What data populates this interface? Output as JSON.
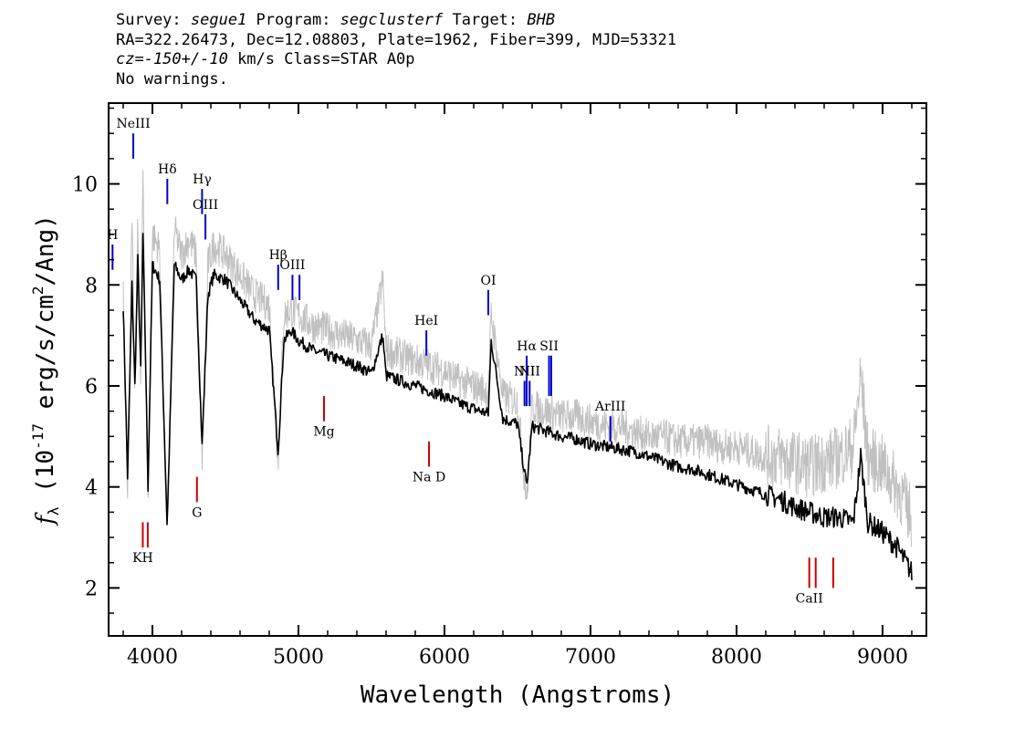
{
  "header": {
    "survey_label": "Survey: ",
    "survey_value": "segue1",
    "program_label": " Program: ",
    "program_value": "segclusterf",
    "target_label": " Target: ",
    "target_value": "BHB",
    "coords_line": "RA=322.26473, Dec=12.08803, Plate=1962, Fiber=399, MJD=53321",
    "cz_value": "cz=-150+/-10",
    "cz_rest": " km/s Class=STAR A0p",
    "warnings": "No warnings."
  },
  "chart_data": {
    "type": "line",
    "xlabel": "Wavelength (Angstroms)",
    "ylabel_main": "f",
    "ylabel_sub": "λ",
    "ylabel_unit_pre": " (10",
    "ylabel_exp1": "-17",
    "ylabel_unit_mid": " erg/s/cm",
    "ylabel_exp2": "2",
    "ylabel_unit_post": "/Ang)",
    "xlim": [
      3700,
      9300
    ],
    "ylim": [
      1.05,
      11.6
    ],
    "xticks": [
      4000,
      5000,
      6000,
      7000,
      8000,
      9000
    ],
    "yticks": [
      2,
      4,
      6,
      8,
      10
    ],
    "grid": false,
    "legend": "none",
    "series": [
      {
        "role": "flux-smoothed",
        "color": "#000000",
        "x": [
          3800,
          3830,
          3860,
          3880,
          3900,
          3920,
          3935,
          3950,
          3970,
          4000,
          4050,
          4101,
          4150,
          4200,
          4250,
          4300,
          4340,
          4380,
          4420,
          4500,
          4600,
          4700,
          4800,
          4861,
          4900,
          4950,
          5000,
          5100,
          5200,
          5300,
          5400,
          5500,
          5577,
          5600,
          5700,
          5800,
          5900,
          6000,
          6100,
          6200,
          6300,
          6320,
          6400,
          6500,
          6563,
          6600,
          6700,
          6800,
          6900,
          7000,
          7100,
          7200,
          7300,
          7400,
          7500,
          7600,
          7700,
          7800,
          7900,
          8000,
          8100,
          8200,
          8300,
          8400,
          8500,
          8600,
          8700,
          8800,
          8850,
          8900,
          9000,
          9100,
          9200
        ],
        "y": [
          7.6,
          4.2,
          8.0,
          6.0,
          8.5,
          6.3,
          9.0,
          7.0,
          4.0,
          8.4,
          8.1,
          3.2,
          8.4,
          8.1,
          8.3,
          8.1,
          4.8,
          7.8,
          8.2,
          8.1,
          7.7,
          7.3,
          7.1,
          4.7,
          6.9,
          7.1,
          6.9,
          6.7,
          6.6,
          6.5,
          6.4,
          6.25,
          7.0,
          6.2,
          6.1,
          6.0,
          5.9,
          5.8,
          5.65,
          5.55,
          5.45,
          6.9,
          5.35,
          5.25,
          4.0,
          5.2,
          5.1,
          5.0,
          4.95,
          4.85,
          4.8,
          4.75,
          4.7,
          4.6,
          4.5,
          4.4,
          4.35,
          4.25,
          4.15,
          4.05,
          3.95,
          3.85,
          3.75,
          3.6,
          3.5,
          3.4,
          3.4,
          3.3,
          4.6,
          3.3,
          3.1,
          2.8,
          2.3
        ]
      },
      {
        "role": "flux-raw",
        "color": "#c0c0c0",
        "x": [
          3800,
          3830,
          3860,
          3880,
          3900,
          3920,
          3935,
          3950,
          3970,
          4000,
          4050,
          4101,
          4150,
          4200,
          4250,
          4300,
          4340,
          4380,
          4420,
          4500,
          4600,
          4700,
          4800,
          4861,
          4900,
          4950,
          5000,
          5100,
          5200,
          5300,
          5400,
          5500,
          5577,
          5600,
          5700,
          5800,
          5900,
          6000,
          6100,
          6200,
          6300,
          6320,
          6400,
          6500,
          6563,
          6600,
          6700,
          6800,
          6900,
          7000,
          7100,
          7200,
          7300,
          7400,
          7500,
          7600,
          7700,
          7800,
          7900,
          8000,
          8100,
          8200,
          8300,
          8400,
          8500,
          8600,
          8700,
          8800,
          8850,
          8900,
          9000,
          9100,
          9200
        ],
        "y": [
          7.9,
          4.0,
          9.2,
          5.6,
          9.5,
          6.0,
          10.3,
          7.2,
          3.8,
          9.0,
          8.7,
          3.0,
          9.1,
          8.6,
          8.9,
          8.6,
          4.6,
          8.4,
          8.8,
          8.6,
          8.2,
          7.8,
          7.6,
          4.5,
          7.4,
          7.5,
          7.4,
          7.2,
          7.1,
          7.0,
          6.9,
          6.8,
          8.1,
          6.7,
          6.6,
          6.5,
          6.4,
          6.3,
          6.1,
          6.0,
          5.9,
          7.4,
          5.8,
          5.7,
          3.7,
          5.6,
          5.5,
          5.4,
          5.4,
          5.3,
          5.2,
          5.2,
          5.1,
          5.0,
          5.0,
          4.9,
          4.9,
          4.9,
          4.8,
          4.8,
          4.7,
          4.6,
          4.6,
          4.5,
          4.4,
          4.5,
          4.6,
          4.8,
          6.2,
          4.6,
          4.4,
          4.0,
          3.4
        ]
      }
    ],
    "emission_lines": [
      {
        "label": "H",
        "x": 3727,
        "y_top": 8.8,
        "y_bot": 8.3
      },
      {
        "label": "NeIII",
        "x": 3869,
        "y_top": 11.0,
        "y_bot": 10.5
      },
      {
        "label": "Hδ",
        "x": 4102,
        "y_top": 10.1,
        "y_bot": 9.6
      },
      {
        "label": "Hγ",
        "x": 4340,
        "y_top": 9.9,
        "y_bot": 9.4
      },
      {
        "label": "OIII",
        "x": 4363,
        "y_top": 9.4,
        "y_bot": 8.9
      },
      {
        "label": "Hβ",
        "x": 4861,
        "y_top": 8.4,
        "y_bot": 7.9
      },
      {
        "label": "OIII",
        "x": 4959,
        "y_top": 8.2,
        "y_bot": 7.7
      },
      {
        "label": "",
        "x": 5007,
        "y_top": 8.2,
        "y_bot": 7.7
      },
      {
        "label": "HeI",
        "x": 5876,
        "y_top": 7.1,
        "y_bot": 6.6
      },
      {
        "label": "OI",
        "x": 6300,
        "y_top": 7.9,
        "y_bot": 7.4
      },
      {
        "label": "NII",
        "x": 6548,
        "y_top": 6.1,
        "y_bot": 5.6
      },
      {
        "label": "Hα",
        "x": 6563,
        "y_top": 6.6,
        "y_bot": 5.6
      },
      {
        "label": "NII",
        "x": 6583,
        "y_top": 6.1,
        "y_bot": 5.6
      },
      {
        "label": "SII",
        "x": 6716,
        "y_top": 6.6,
        "y_bot": 5.8
      },
      {
        "label": "",
        "x": 6731,
        "y_top": 6.6,
        "y_bot": 5.8
      },
      {
        "label": "ArIII",
        "x": 7136,
        "y_top": 5.4,
        "y_bot": 4.9
      }
    ],
    "absorption_lines": [
      {
        "label": "KH",
        "x": 3934,
        "y_top": 3.3,
        "y_bot": 2.8
      },
      {
        "label": "",
        "x": 3968,
        "y_top": 3.3,
        "y_bot": 2.8
      },
      {
        "label": "G",
        "x": 4305,
        "y_top": 4.2,
        "y_bot": 3.7
      },
      {
        "label": "Mg",
        "x": 5175,
        "y_top": 5.8,
        "y_bot": 5.3
      },
      {
        "label": "Na D",
        "x": 5894,
        "y_top": 4.9,
        "y_bot": 4.4
      },
      {
        "label": "CaII",
        "x": 8498,
        "y_top": 2.6,
        "y_bot": 2.0
      },
      {
        "label": "",
        "x": 8542,
        "y_top": 2.6,
        "y_bot": 2.0
      },
      {
        "label": "",
        "x": 8662,
        "y_top": 2.6,
        "y_bot": 2.0
      }
    ]
  },
  "colors": {
    "emission": "#0000cc",
    "absorption": "#cc0000",
    "flux_raw": "#c0c0c0",
    "flux_smoothed": "#000000",
    "axes": "#000000"
  }
}
